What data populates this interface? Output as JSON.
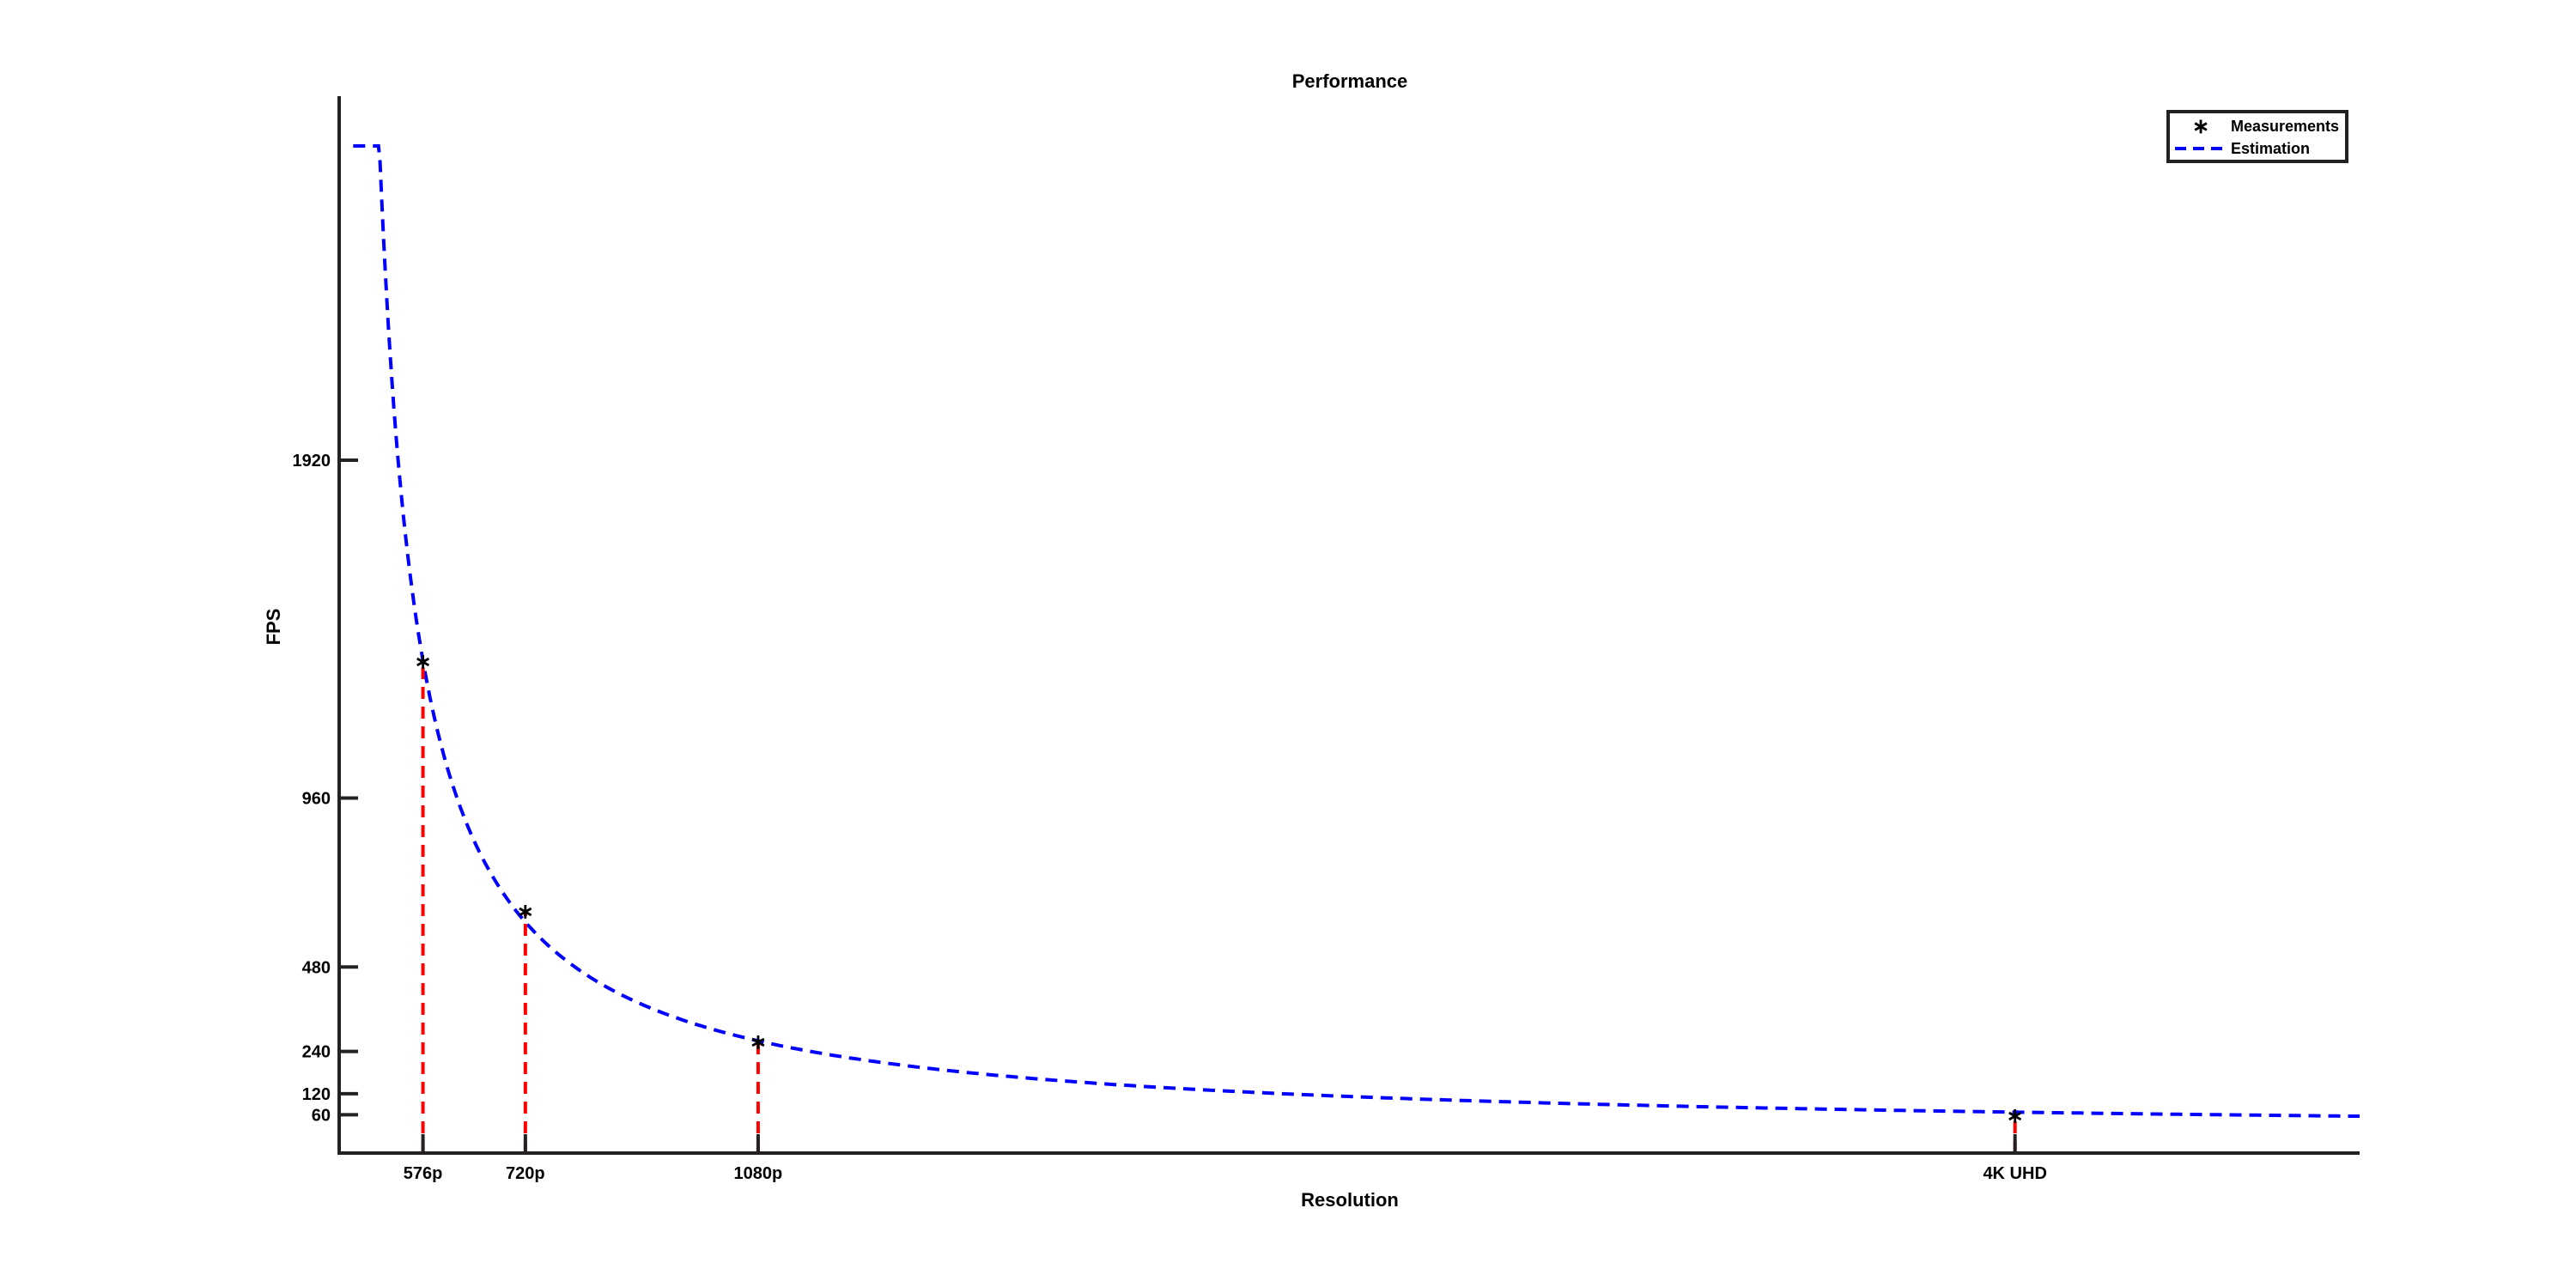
{
  "chart_data": {
    "type": "line",
    "title": "Performance",
    "xlabel": "Resolution",
    "ylabel": "FPS",
    "x_categories_pixels_label_positions_are_data": false,
    "x_ticks": [
      {
        "label": "576p",
        "pixels": 414720
      },
      {
        "label": "720p",
        "pixels": 921600
      },
      {
        "label": "1080p",
        "pixels": 2073600
      },
      {
        "label": "4K UHD",
        "pixels": 8294400
      }
    ],
    "y_ticks": [
      60,
      120,
      240,
      480,
      960,
      1920
    ],
    "xlim": [
      0,
      10000000
    ],
    "ylim": [
      0,
      3000
    ],
    "series": [
      {
        "name": "Measurements",
        "style": "red asterisk markers with dashed stems",
        "color": "#ff0000",
        "points": [
          {
            "x": 414720,
            "y": 1350
          },
          {
            "x": 921600,
            "y": 640
          },
          {
            "x": 2073600,
            "y": 270
          },
          {
            "x": 8294400,
            "y": 60
          }
        ]
      },
      {
        "name": "Estimation",
        "style": "blue dashed line",
        "color": "#0000ff",
        "model": "y = 560000000 / x",
        "x_range": [
          0,
          10000000
        ]
      }
    ],
    "legend": {
      "placement": "top-right",
      "entries": [
        "Measurements",
        "Estimation"
      ]
    },
    "grid": false
  }
}
